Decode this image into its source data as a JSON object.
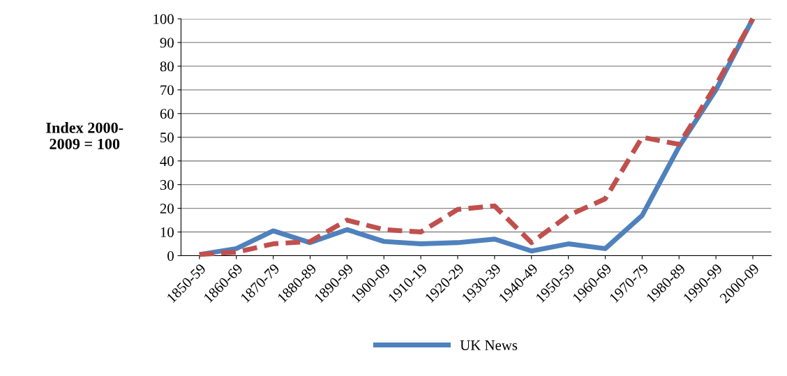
{
  "chart_data": {
    "type": "line",
    "ylabel": "Index 2000-\n2009 = 100",
    "categories": [
      "1850-59",
      "1860-69",
      "1870-79",
      "1880-89",
      "1890-99",
      "1900-09",
      "1910-19",
      "1920-29",
      "1930-39",
      "1940-49",
      "1950-59",
      "1960-69",
      "1970-79",
      "1980-89",
      "1990-99",
      "2000-09"
    ],
    "series": [
      {
        "name": "UK News",
        "color": "#4f81bd",
        "line_style": "solid",
        "values": [
          0.5,
          3,
          10.5,
          5.5,
          11,
          6,
          5,
          5.5,
          7,
          2,
          5,
          3,
          17,
          46,
          70,
          100
        ]
      },
      {
        "color": "#c0504d",
        "line_style": "dashed",
        "values": [
          0.5,
          1.5,
          5,
          6,
          15,
          11,
          10,
          19.5,
          21,
          5.5,
          17,
          24,
          50,
          47,
          72,
          100
        ]
      }
    ],
    "ylim": [
      0,
      100
    ],
    "yticks": [
      0,
      10,
      20,
      30,
      40,
      50,
      60,
      70,
      80,
      90,
      100
    ],
    "grid": "y",
    "legend": "bottom",
    "marker": "none"
  }
}
